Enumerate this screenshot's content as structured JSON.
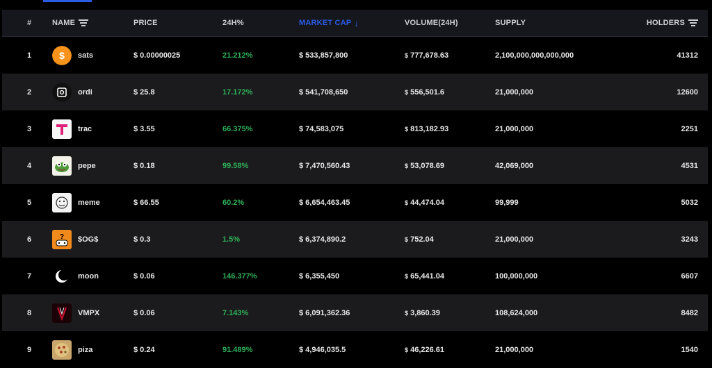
{
  "headers": {
    "rank": "#",
    "name": "NAME",
    "price": "PRICE",
    "change": "24H%",
    "market_cap": "MARKET CAP",
    "volume": "VOLUME(24H)",
    "supply": "SUPPLY",
    "holders": "HOLDERS"
  },
  "colors": {
    "accent": "#2b5ce6",
    "positive": "#2eb058",
    "row_alt": "#1b1b1d",
    "header_bg": "#16161d"
  },
  "rows": [
    {
      "rank": "1",
      "name": "sats",
      "icon": "sats-logo-icon",
      "price": "$ 0.00000025",
      "change": "21.212%",
      "market_cap": "$ 533,857,800",
      "volume_symbol": "$",
      "volume": "777,678.63",
      "supply": "2,100,000,000,000,000",
      "holders": "41312"
    },
    {
      "rank": "2",
      "name": "ordi",
      "icon": "ordi-logo-icon",
      "price": "$ 25.8",
      "change": "17.172%",
      "market_cap": "$ 541,708,650",
      "volume_symbol": "$",
      "volume": "556,501.6",
      "supply": "21,000,000",
      "holders": "12600"
    },
    {
      "rank": "3",
      "name": "trac",
      "icon": "trac-logo-icon",
      "price": "$ 3.55",
      "change": "66.375%",
      "market_cap": "$ 74,583,075",
      "volume_symbol": "$",
      "volume": "813,182.93",
      "supply": "21,000,000",
      "holders": "2251"
    },
    {
      "rank": "4",
      "name": "pepe",
      "icon": "pepe-logo-icon",
      "price": "$ 0.18",
      "change": "99.58%",
      "market_cap": "$ 7,470,560.43",
      "volume_symbol": "$",
      "volume": "53,078.69",
      "supply": "42,069,000",
      "holders": "4531"
    },
    {
      "rank": "5",
      "name": "meme",
      "icon": "meme-logo-icon",
      "price": "$ 66.55",
      "change": "60.2%",
      "market_cap": "$ 6,654,463.45",
      "volume_symbol": "$",
      "volume": "44,474.04",
      "supply": "99,999",
      "holders": "5032"
    },
    {
      "rank": "6",
      "name": "$OG$",
      "icon": "og-logo-icon",
      "price": "$ 0.3",
      "change": "1.5%",
      "market_cap": "$ 6,374,890.2",
      "volume_symbol": "$",
      "volume": "752.04",
      "supply": "21,000,000",
      "holders": "3243"
    },
    {
      "rank": "7",
      "name": "moon",
      "icon": "moon-logo-icon",
      "price": "$ 0.06",
      "change": "146.377%",
      "market_cap": "$ 6,355,450",
      "volume_symbol": "$",
      "volume": "65,441.04",
      "supply": "100,000,000",
      "holders": "6607"
    },
    {
      "rank": "8",
      "name": "VMPX",
      "icon": "vmpx-logo-icon",
      "price": "$ 0.06",
      "change": "7.143%",
      "market_cap": "$ 6,091,362.36",
      "volume_symbol": "$",
      "volume": "3,860.39",
      "supply": "108,624,000",
      "holders": "8482"
    },
    {
      "rank": "9",
      "name": "piza",
      "icon": "piza-logo-icon",
      "price": "$ 0.24",
      "change": "91.489%",
      "market_cap": "$ 4,946,035.5",
      "volume_symbol": "$",
      "volume": "46,226.61",
      "supply": "21,000,000",
      "holders": "1540"
    }
  ]
}
